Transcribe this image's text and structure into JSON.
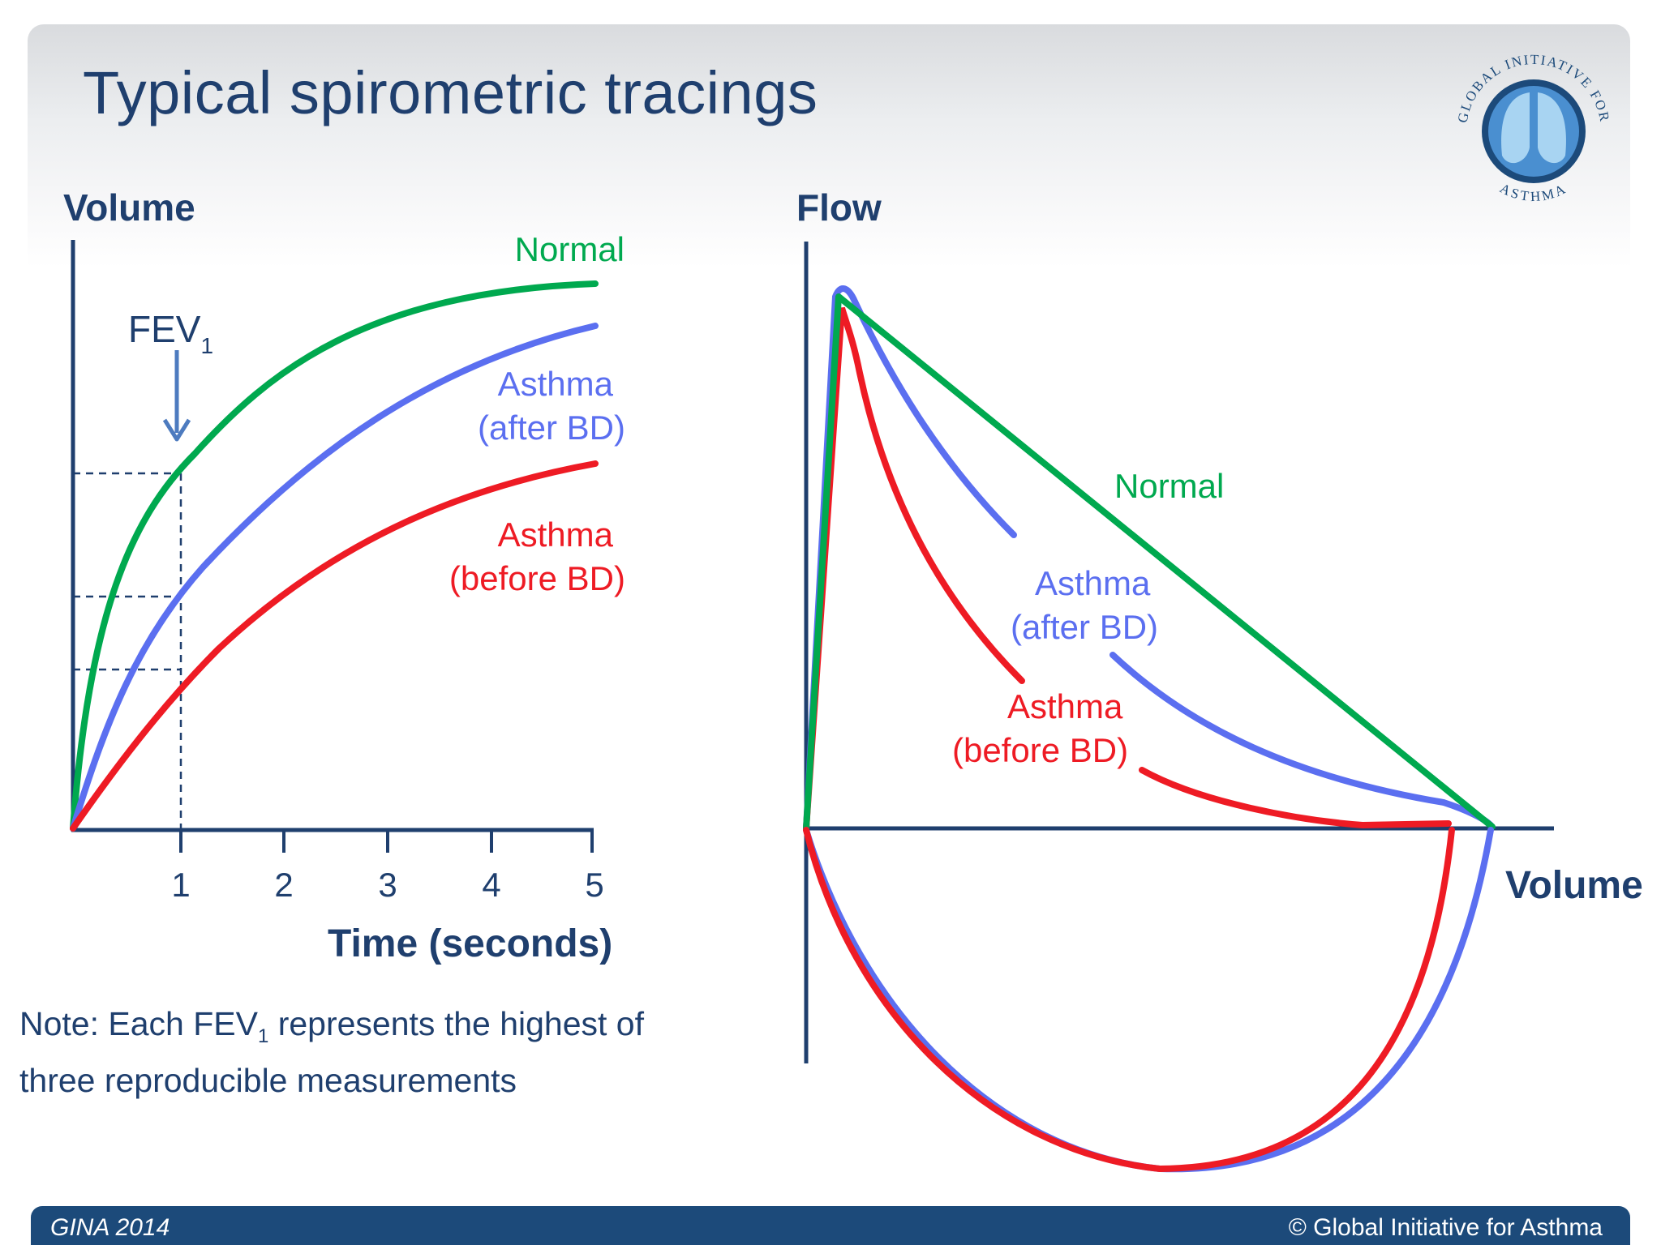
{
  "title": "Typical spirometric tracings",
  "logo": {
    "top_text": "GLOBAL INITIATIVE FOR",
    "bottom_text": "ASTHMA"
  },
  "colors": {
    "normal": "#00a94f",
    "asthma_after_bd": "#5b6ff0",
    "asthma_before_bd": "#ee1b24",
    "axis": "#1f3f6e"
  },
  "volume_time": {
    "y_label": "Volume",
    "x_label": "Time (seconds)",
    "x_ticks": [
      "1",
      "2",
      "3",
      "4",
      "5"
    ],
    "fev1_label": "FEV",
    "fev1_subscript": "1",
    "series_labels": {
      "normal": "Normal",
      "after_bd_line1": "Asthma",
      "after_bd_line2": "(after BD)",
      "before_bd_line1": "Asthma",
      "before_bd_line2": "(before BD)"
    }
  },
  "flow_volume": {
    "y_label": "Flow",
    "x_label": "Volume",
    "series_labels": {
      "normal": "Normal",
      "after_bd_line1": "Asthma",
      "after_bd_line2": "(after BD)",
      "before_bd_line1": "Asthma",
      "before_bd_line2": "(before BD)"
    }
  },
  "note": {
    "prefix": "Note:  Each FEV",
    "subscript": "1",
    "suffix": " represents the highest of",
    "line2": "three reproducible measurements"
  },
  "footer": {
    "left": "GINA 2014",
    "right": "© Global Initiative for Asthma"
  }
}
